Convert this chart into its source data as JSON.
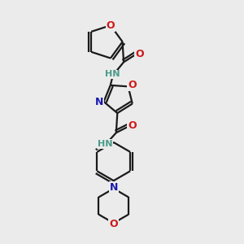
{
  "bg_color": "#ebebeb",
  "bond_color": "#1a1a1a",
  "N_color": "#1919b0",
  "O_color": "#cc1a1a",
  "NH_color": "#4a9a8a",
  "font_size": 8,
  "line_width": 1.6,
  "figsize": [
    3.0,
    3.0
  ],
  "dpi": 100,
  "xlim": [
    0,
    10
  ],
  "ylim": [
    0,
    10
  ]
}
